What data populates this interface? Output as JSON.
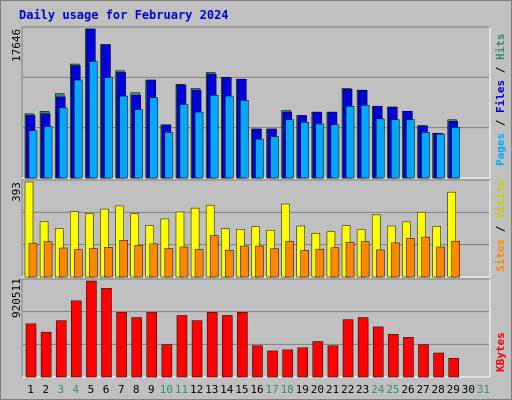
{
  "title": "Daily usage for February 2024",
  "colors": {
    "hits": "#2f8f6f",
    "files": "#0000dd",
    "pages": "#00a8ff",
    "visits": "#ffff00",
    "sites": "#ff8800",
    "kbytes": "#ff0000",
    "background": "#c0c0c0",
    "axis_green": "#2f8f6f"
  },
  "legend": {
    "pages": "Pages",
    "files": "Files",
    "hits": "Hits",
    "sites": "Sites",
    "visits": "Visits",
    "kbytes": "KBytes",
    "sep": " / "
  },
  "chart_data": [
    {
      "type": "bar",
      "panel": "hits-files-pages",
      "ymax_label": "17646",
      "ylim": [
        0,
        17646
      ],
      "categories": [
        "1",
        "2",
        "3",
        "4",
        "5",
        "6",
        "7",
        "8",
        "9",
        "10",
        "11",
        "12",
        "13",
        "14",
        "15",
        "16",
        "17",
        "18",
        "19",
        "20",
        "21",
        "22",
        "23",
        "24",
        "25",
        "26",
        "27",
        "28",
        "29",
        "30",
        "31"
      ],
      "weekend_days": [
        "3",
        "4",
        "10",
        "11",
        "17",
        "18",
        "24",
        "25",
        "31"
      ],
      "series": [
        {
          "name": "Hits",
          "values": [
            7600,
            7900,
            10000,
            13500,
            17646,
            15800,
            12700,
            10100,
            11600,
            6300,
            11100,
            10600,
            12500,
            11900,
            11700,
            5800,
            5800,
            8000,
            7400,
            7800,
            7800,
            10600,
            10400,
            8500,
            8400,
            7900,
            6200,
            5300,
            6900,
            0,
            0
          ]
        },
        {
          "name": "Files",
          "values": [
            7400,
            7600,
            9600,
            13300,
            17646,
            15800,
            12500,
            9800,
            11600,
            6300,
            11000,
            10400,
            12300,
            11900,
            11700,
            5800,
            5800,
            7800,
            7400,
            7800,
            7800,
            10500,
            10400,
            8500,
            8400,
            7900,
            6200,
            5300,
            6700,
            0,
            0
          ]
        },
        {
          "name": "Pages",
          "values": [
            5600,
            6100,
            8300,
            11600,
            13800,
            11900,
            9700,
            8100,
            9500,
            5400,
            8700,
            7800,
            9800,
            9700,
            9200,
            4600,
            4900,
            6900,
            6600,
            6400,
            6300,
            8500,
            8600,
            7000,
            6900,
            6900,
            5400,
            5200,
            6000,
            0,
            0
          ]
        }
      ]
    },
    {
      "type": "bar",
      "panel": "visits-sites",
      "ymax_label": "393",
      "ylim": [
        0,
        393
      ],
      "categories": [
        "1",
        "2",
        "3",
        "4",
        "5",
        "6",
        "7",
        "8",
        "9",
        "10",
        "11",
        "12",
        "13",
        "14",
        "15",
        "16",
        "17",
        "18",
        "19",
        "20",
        "21",
        "22",
        "23",
        "24",
        "25",
        "26",
        "27",
        "28",
        "29",
        "30",
        "31"
      ],
      "series": [
        {
          "name": "Visits",
          "values": [
            393,
            230,
            200,
            270,
            262,
            281,
            294,
            262,
            213,
            240,
            269,
            285,
            297,
            200,
            197,
            208,
            193,
            302,
            211,
            181,
            187,
            212,
            197,
            257,
            211,
            228,
            268,
            209,
            351,
            0,
            0
          ]
        },
        {
          "name": "Sites",
          "values": [
            140,
            146,
            120,
            113,
            118,
            123,
            152,
            131,
            137,
            118,
            124,
            114,
            171,
            111,
            128,
            128,
            117,
            147,
            110,
            115,
            121,
            144,
            146,
            112,
            141,
            160,
            165,
            124,
            148,
            0,
            0
          ]
        }
      ]
    },
    {
      "type": "bar",
      "panel": "kbytes",
      "ymax_label": "920511",
      "ylim": [
        0,
        920511
      ],
      "categories": [
        "1",
        "2",
        "3",
        "4",
        "5",
        "6",
        "7",
        "8",
        "9",
        "10",
        "11",
        "12",
        "13",
        "14",
        "15",
        "16",
        "17",
        "18",
        "19",
        "20",
        "21",
        "22",
        "23",
        "24",
        "25",
        "26",
        "27",
        "28",
        "29",
        "30",
        "31"
      ],
      "series": [
        {
          "name": "KBytes",
          "values": [
            510000,
            430000,
            540000,
            730000,
            920511,
            850000,
            620000,
            570000,
            620000,
            310000,
            590000,
            540000,
            620000,
            590000,
            620000,
            300000,
            250000,
            260000,
            280000,
            340000,
            300000,
            550000,
            570000,
            480000,
            410000,
            380000,
            310000,
            230000,
            180000,
            0,
            0
          ]
        }
      ]
    }
  ]
}
